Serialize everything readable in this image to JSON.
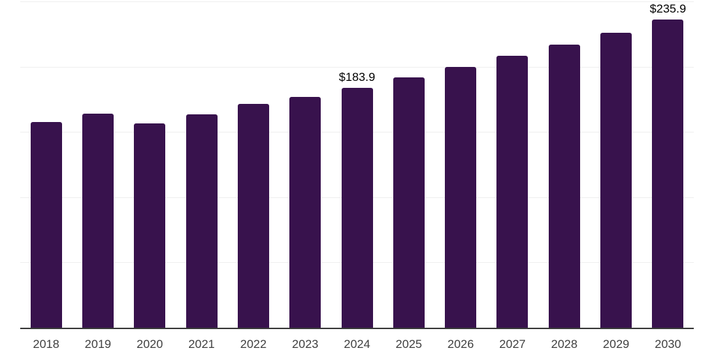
{
  "chart_data": {
    "type": "bar",
    "title": "",
    "xlabel": "",
    "ylabel": "",
    "legend": "none",
    "grid": "horizontal",
    "categories": [
      "2018",
      "2019",
      "2020",
      "2021",
      "2022",
      "2023",
      "2024",
      "2025",
      "2026",
      "2027",
      "2028",
      "2029",
      "2030"
    ],
    "values": [
      157.8,
      164.0,
      156.3,
      163.5,
      171.7,
      177.0,
      183.9,
      191.6,
      199.8,
      208.2,
      217.0,
      226.2,
      235.9
    ],
    "bar_labels": [
      "",
      "",
      "",
      "",
      "",
      "",
      "$183.9",
      "",
      "",
      "",
      "",
      "",
      "$235.9"
    ],
    "ylim": [
      0,
      250
    ],
    "gridline_values": [
      50,
      100,
      150,
      200,
      250
    ],
    "colors": {
      "bar": "#38124D",
      "axis_line": "#3A3A3A",
      "gridline": "#EFEFEF",
      "tick_text": "#404040",
      "value_label_text": "#000000",
      "background": "#FFFFFF"
    }
  }
}
